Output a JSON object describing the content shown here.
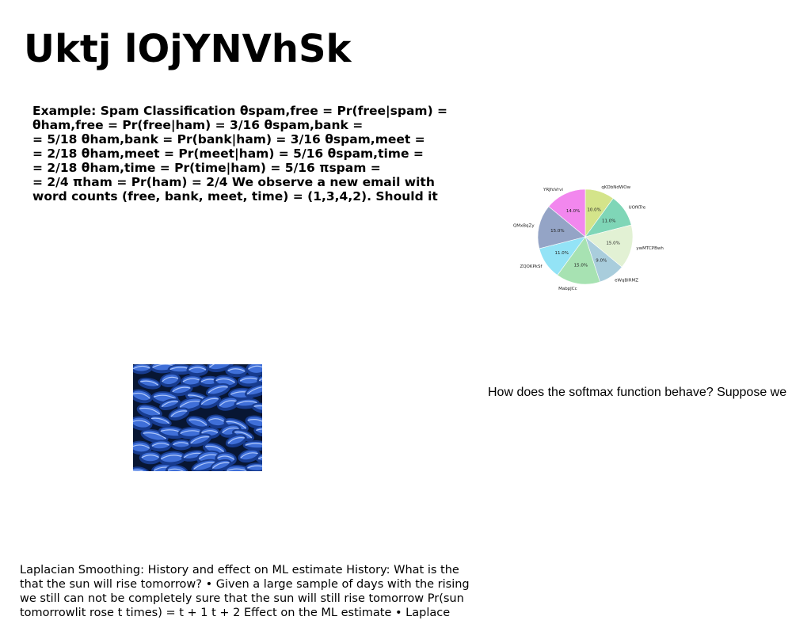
{
  "slide": {
    "title": "Uktj lOjYNVhSk",
    "main_text_lines": [
      "Example: Spam Classification θspam,free = Pr(free|spam) =",
      "θham,free = Pr(free|ham) = 3/16 θspam,bank =",
      "= 5/18 θham,bank = Pr(bank|ham) = 3/16 θspam,meet =",
      "= 2/18 θham,meet = Pr(meet|ham) = 5/16 θspam,time =",
      "= 2/18 θham,time = Pr(time|ham) = 5/16 πspam =",
      "= 2/4 πham = Pr(ham) = 2/4 We observe a new email with",
      "word counts (free, bank, meet, time) = (1,3,4,2). Should it"
    ],
    "softmax_text": "How does the softmax function behave? Suppose we",
    "bottom_text_lines": [
      "Laplacian Smoothing: History and effect on ML estimate History: What is the",
      "that the sun will rise tomorrow? • Given a large sample of days with the rising",
      "we still can not be completely sure that the sun will still rise tomorrow Pr(sun",
      "tomorrowlit rose t times) = t + 1 t + 2 Effect on the ML estimate • Laplace"
    ]
  },
  "chart_data": {
    "type": "pie",
    "title": "",
    "start_angle_deg": 90,
    "direction": "clockwise",
    "slices": [
      {
        "label": "qKDbNdWOw",
        "value": 10.0,
        "pct_label": "10.0%",
        "color": "#d4e48a"
      },
      {
        "label": "UOfKTre",
        "value": 11.0,
        "pct_label": "11.0%",
        "color": "#7fd6b7"
      },
      {
        "label": "ywMTCPBwh",
        "value": 15.0,
        "pct_label": "15.0%",
        "color": "#e2f1d4"
      },
      {
        "label": "eWqBlRMZ",
        "value": 9.0,
        "pct_label": "9.0%",
        "color": "#a9cddc"
      },
      {
        "label": "MabpJCc",
        "value": 15.0,
        "pct_label": "15.0%",
        "color": "#a7e2b2"
      },
      {
        "label": "ZQOKPkSf",
        "value": 11.0,
        "pct_label": "11.0%",
        "color": "#93e3f6"
      },
      {
        "label": "QMxBqZy",
        "value": 15.0,
        "pct_label": "15.0%",
        "color": "#94a4c6"
      },
      {
        "label": "YRJfoVrvi",
        "value": 14.0,
        "pct_label": "14.0%",
        "color": "#f287ee"
      }
    ]
  },
  "image": {
    "subject": "blue oyster mushrooms photo",
    "colors": [
      "#081633",
      "#173b8e",
      "#3f6fd8",
      "#c3d7ff"
    ]
  }
}
